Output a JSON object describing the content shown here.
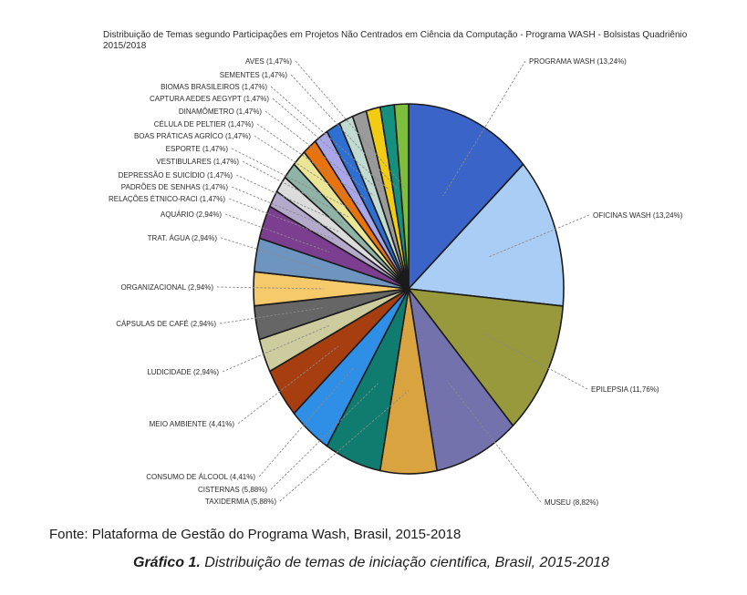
{
  "page": {
    "title": "Distribuição de Temas segundo Participações em Projetos Não Centrados em Ciência da Computação - Programa WASH - Bolsistas Quadriênio 2015/2018",
    "source": "Fonte: Plataforma de Gestão do Programa Wash, Brasil, 2015-2018",
    "caption_label": "Gráfico 1.",
    "caption_text": " Distribuição de temas de iniciação cientifica, Brasil, 2015-2018"
  },
  "chart_data": {
    "type": "pie",
    "title": "Distribuição de Temas segundo Participações em Projetos Não Centrados em Ciência da Computação - Programa WASH - Bolsistas Quadriênio 2015/2018",
    "direction": "clockwise",
    "start_angle_deg": 0,
    "value_unit": "percent",
    "decimal_style": "comma",
    "legend_position": "callout-labels",
    "slices": [
      {
        "label": "PROGRAMA WASH",
        "pct": "13,24%",
        "value": 13.24,
        "color": "#3A64C8"
      },
      {
        "label": "OFICINAS WASH",
        "pct": "13,24%",
        "value": 13.24,
        "color": "#A9CDF4"
      },
      {
        "label": "EPILEPSIA",
        "pct": "11,76%",
        "value": 11.76,
        "color": "#97993C"
      },
      {
        "label": "MUSEU",
        "pct": "8,82%",
        "value": 8.82,
        "color": "#7472AC"
      },
      {
        "label": "TAXIDERMIA",
        "pct": "5,88%",
        "value": 5.88,
        "color": "#D9A440"
      },
      {
        "label": "CISTERNAS",
        "pct": "5,88%",
        "value": 5.88,
        "color": "#0F7C6F"
      },
      {
        "label": "CONSUMO DE ÁLCOOL",
        "pct": "4,41%",
        "value": 4.41,
        "color": "#2F8EE5"
      },
      {
        "label": "MEIO AMBIENTE",
        "pct": "4,41%",
        "value": 4.41,
        "color": "#A63E10"
      },
      {
        "label": "LUDICIDADE",
        "pct": "2,94%",
        "value": 2.94,
        "color": "#CCCC9E"
      },
      {
        "label": "CÁPSULAS DE CAFÉ",
        "pct": "2,94%",
        "value": 2.94,
        "color": "#666666"
      },
      {
        "label": "ORGANIZACIONAL",
        "pct": "2,94%",
        "value": 2.94,
        "color": "#F6C96B"
      },
      {
        "label": "TRAT. ÁGUA",
        "pct": "2,94%",
        "value": 2.94,
        "color": "#6E94C0"
      },
      {
        "label": "AQUÁRIO",
        "pct": "2,94%",
        "value": 2.94,
        "color": "#7C3E8F"
      },
      {
        "label": "RELAÇÕES ÉTNICO-RACI",
        "pct": "1,47%",
        "value": 1.47,
        "color": "#B3AACB"
      },
      {
        "label": "PADRÕES DE SENHAS",
        "pct": "1,47%",
        "value": 1.47,
        "color": "#DCDCDC"
      },
      {
        "label": "DEPRESSÃO E SUICÍDIO",
        "pct": "1,47%",
        "value": 1.47,
        "color": "#8FB3A6"
      },
      {
        "label": "VESTIBULARES",
        "pct": "1,47%",
        "value": 1.47,
        "color": "#EBE596"
      },
      {
        "label": "ESPORTE",
        "pct": "1,47%",
        "value": 1.47,
        "color": "#E8730D"
      },
      {
        "label": "BOAS PRÁTICAS AGRÍCO",
        "pct": "1,47%",
        "value": 1.47,
        "color": "#A9A7EA"
      },
      {
        "label": "CÉLULA DE PELTIER",
        "pct": "1,47%",
        "value": 1.47,
        "color": "#2E6FD2"
      },
      {
        "label": "DINAMÔMETRO",
        "pct": "1,47%",
        "value": 1.47,
        "color": "#C2DBD2"
      },
      {
        "label": "CAPTURA AEDES AEGYPT",
        "pct": "1,47%",
        "value": 1.47,
        "color": "#9A9A9A"
      },
      {
        "label": "BIOMAS BRASILEIROS",
        "pct": "1,47%",
        "value": 1.47,
        "color": "#F2CC12"
      },
      {
        "label": "SEMENTES",
        "pct": "1,47%",
        "value": 1.47,
        "color": "#16907E"
      },
      {
        "label": "AVES",
        "pct": "1,47%",
        "value": 1.47,
        "color": "#7DBE3C"
      }
    ]
  }
}
